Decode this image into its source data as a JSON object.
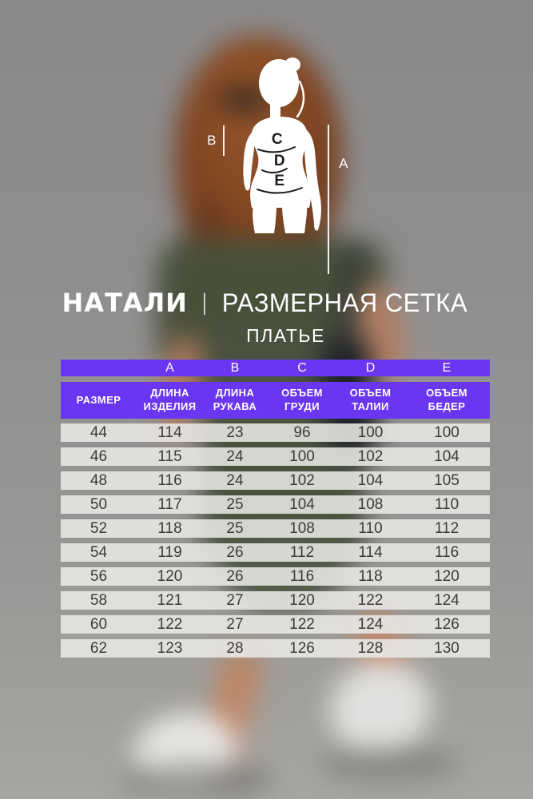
{
  "header": {
    "brand": "НАТАЛИ",
    "separator": "|",
    "title": "РАЗМЕРНАЯ СЕТКА",
    "subtitle": "ПЛАТЬЕ"
  },
  "diagram": {
    "label_a": "A",
    "label_b": "B",
    "label_c": "C",
    "label_d": "D",
    "label_e": "E"
  },
  "table": {
    "letter_row": [
      "",
      "A",
      "B",
      "C",
      "D",
      "E"
    ],
    "headers": [
      "РАЗМЕР",
      "ДЛИНА\nИЗДЕЛИЯ",
      "ДЛИНА\nРУКАВА",
      "ОБЪЕМ\nГРУДИ",
      "ОБЪЕМ\nТАЛИИ",
      "ОБЪЕМ\nБЕДЕР"
    ],
    "rows": [
      [
        "44",
        "114",
        "23",
        "96",
        "100",
        "100"
      ],
      [
        "46",
        "115",
        "24",
        "100",
        "102",
        "104"
      ],
      [
        "48",
        "116",
        "24",
        "102",
        "104",
        "105"
      ],
      [
        "50",
        "117",
        "25",
        "104",
        "108",
        "110"
      ],
      [
        "52",
        "118",
        "25",
        "108",
        "110",
        "112"
      ],
      [
        "54",
        "119",
        "26",
        "112",
        "114",
        "116"
      ],
      [
        "56",
        "120",
        "26",
        "116",
        "118",
        "120"
      ],
      [
        "58",
        "121",
        "27",
        "120",
        "122",
        "124"
      ],
      [
        "60",
        "122",
        "27",
        "122",
        "124",
        "126"
      ],
      [
        "62",
        "123",
        "28",
        "126",
        "128",
        "130"
      ]
    ]
  },
  "colors": {
    "accent_purple": "#6b36f2",
    "row_background": "#e9e8e5",
    "table_text": "#3b3b39",
    "diagram_ink": "#1b1b1b"
  }
}
